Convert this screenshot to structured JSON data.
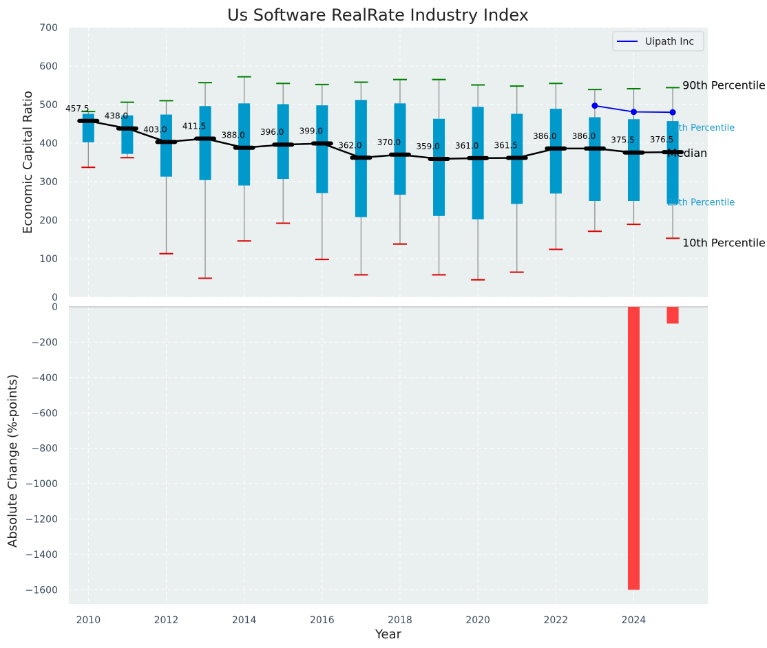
{
  "chart_data": [
    {
      "type": "box",
      "title": "Us Software RealRate Industry Index",
      "ylabel": "Economic Capital Ratio",
      "ylim": [
        0,
        700
      ],
      "yticks": [
        0,
        100,
        200,
        300,
        400,
        500,
        600,
        700
      ],
      "grid": true,
      "legend_position": "top-right",
      "years": [
        2010,
        2011,
        2012,
        2013,
        2014,
        2015,
        2016,
        2017,
        2018,
        2019,
        2020,
        2021,
        2022,
        2023,
        2024,
        2025
      ],
      "p10": [
        337,
        362,
        113,
        49,
        146,
        192,
        98,
        58,
        138,
        58,
        45,
        65,
        124,
        171,
        189,
        153
      ],
      "p25": [
        402,
        372,
        313,
        304,
        290,
        307,
        270,
        208,
        266,
        211,
        202,
        242,
        269,
        250,
        250,
        242
      ],
      "median": [
        457.5,
        438.0,
        403.0,
        411.5,
        388.0,
        396.0,
        399.0,
        362.0,
        370.0,
        359.0,
        361.0,
        361.5,
        386.0,
        386.0,
        375.5,
        376.5
      ],
      "median_labels": [
        "457.5",
        "438.0",
        "403.0",
        "411.5",
        "388.0",
        "396.0",
        "399.0",
        "362.0",
        "370.0",
        "359.0",
        "361.0",
        "361.5",
        "386.0",
        "386.0",
        "375.5",
        "376.5"
      ],
      "p75": [
        476,
        472,
        474,
        496,
        503,
        501,
        498,
        512,
        503,
        463,
        494,
        476,
        489,
        467,
        462,
        457
      ],
      "p90": [
        482,
        506,
        510,
        557,
        572,
        555,
        552,
        558,
        565,
        565,
        551,
        548,
        555,
        539,
        541,
        544
      ],
      "whisker_low": [
        337,
        362,
        113,
        49,
        146,
        192,
        98,
        58,
        138,
        58,
        45,
        65,
        124,
        171,
        189,
        153
      ],
      "whisker_high": [
        482,
        506,
        510,
        557,
        572,
        555,
        552,
        558,
        565,
        565,
        551,
        548,
        555,
        539,
        541,
        544
      ],
      "series": [
        {
          "name": "Uipath Inc",
          "x": [
            2023,
            2024,
            2025
          ],
          "values": [
            497,
            481,
            480
          ]
        }
      ],
      "annotations": {
        "p90": "90th Percentile",
        "p75": "75th Percentile",
        "median": "Median",
        "p25": "25th Percentile",
        "p10": "10th Percentile"
      },
      "colors": {
        "box": "#0099cc",
        "median_line": "#000000",
        "whisker_high_cap": "#008000",
        "whisker_low_cap": "#dd0000",
        "whisker": "#888888",
        "series": "#0000ee",
        "background": "#eaeff0"
      }
    },
    {
      "type": "bar",
      "xlabel": "Year",
      "ylabel": "Absolute Change (%-points)",
      "ylim": [
        -1680,
        0
      ],
      "yticks": [
        0,
        -200,
        -400,
        -600,
        -800,
        -1000,
        -1200,
        -1400,
        -1600
      ],
      "ytick_labels": [
        "0",
        "−200",
        "−400",
        "−600",
        "−800",
        "−1000",
        "−1200",
        "−1400",
        "−1600"
      ],
      "xticks": [
        2010,
        2012,
        2014,
        2016,
        2018,
        2020,
        2022,
        2024
      ],
      "grid": true,
      "x": [
        2024,
        2025
      ],
      "values": [
        -1600,
        -95
      ],
      "colors": {
        "bar": "#ff4040"
      }
    }
  ]
}
